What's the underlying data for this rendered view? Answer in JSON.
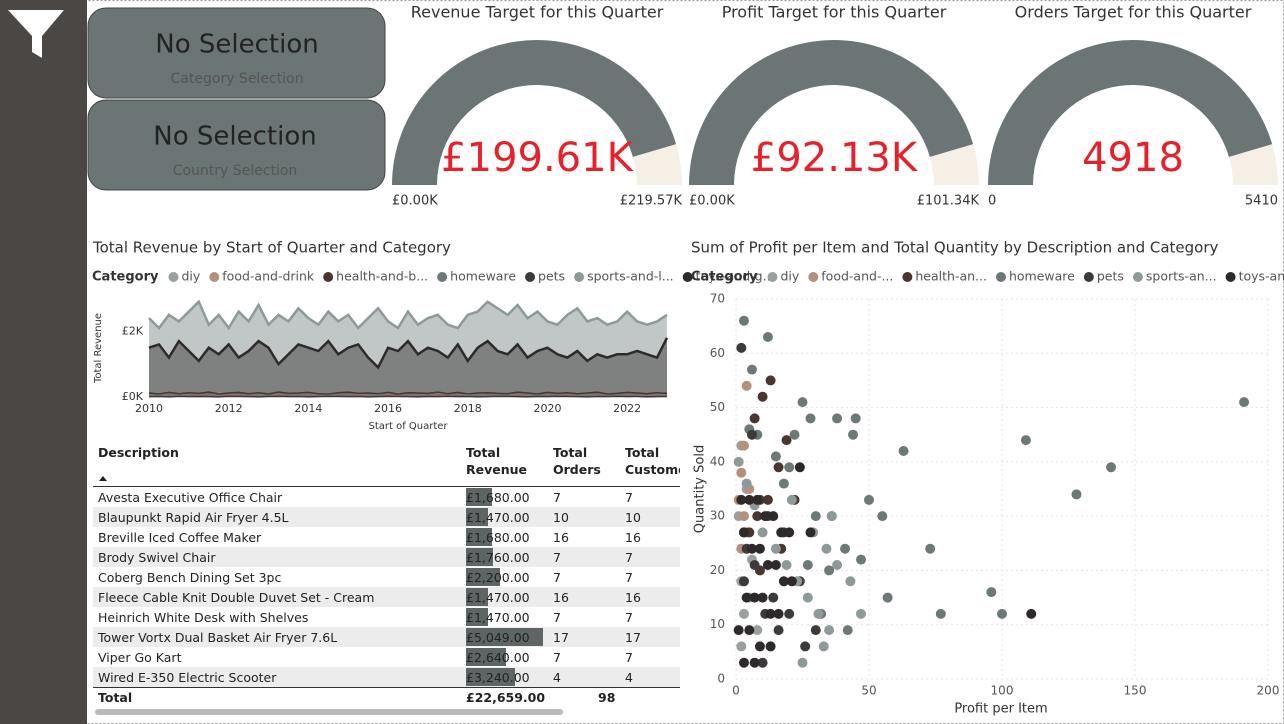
{
  "slicers": [
    {
      "value": "No Selection",
      "label": "Category Selection"
    },
    {
      "value": "No Selection",
      "label": "Country Selection"
    }
  ],
  "chart_data": [
    {
      "type": "gauge",
      "title": "Revenue Target for this Quarter",
      "value": 199610,
      "value_label": "£199.61K",
      "min": {
        "value": 0,
        "label": "£0.00K"
      },
      "max": {
        "value": 219570,
        "label": "£219.57K"
      },
      "color": "#6b7575",
      "track_color": "#f6efe6",
      "value_color": "#e8202a"
    },
    {
      "type": "gauge",
      "title": "Profit Target for this Quarter",
      "value": 92130,
      "value_label": "£92.13K",
      "min": {
        "value": 0,
        "label": "£0.00K"
      },
      "max": {
        "value": 101340,
        "label": "£101.34K"
      },
      "color": "#6b7575",
      "track_color": "#f6efe6",
      "value_color": "#e8202a"
    },
    {
      "type": "gauge",
      "title": "Orders Target for this Quarter",
      "value": 4918,
      "min": 0,
      "max": 5410,
      "color": "#6b7575",
      "track_color": "#f6efe6",
      "value_color": "#e8202a"
    },
    {
      "type": "area",
      "title": "Total Revenue by Start of Quarter and Category",
      "legend_title": "Category",
      "x_label": "Start of Quarter",
      "y_label": "Total Revenue",
      "xlim": [
        2010,
        2023
      ],
      "xticks": [
        2010,
        2012,
        2014,
        2016,
        2018,
        2020,
        2022
      ],
      "ylim": [
        0,
        2800
      ],
      "yticks": [
        {
          "value": 0,
          "label": "£0K"
        },
        {
          "value": 2000,
          "label": "£2K"
        }
      ],
      "x": [
        2010,
        2010.25,
        2010.5,
        2010.75,
        2011,
        2011.25,
        2011.5,
        2011.75,
        2012,
        2012.25,
        2012.5,
        2012.75,
        2013,
        2013.25,
        2013.5,
        2013.75,
        2014,
        2014.25,
        2014.5,
        2014.75,
        2015,
        2015.25,
        2015.5,
        2015.75,
        2016,
        2016.25,
        2016.5,
        2016.75,
        2017,
        2017.25,
        2017.5,
        2017.75,
        2018,
        2018.25,
        2018.5,
        2018.75,
        2019,
        2019.25,
        2019.5,
        2019.75,
        2020,
        2020.25,
        2020.5,
        2020.75,
        2021,
        2021.25,
        2021.5,
        2021.75,
        2022,
        2022.25,
        2022.5,
        2022.75,
        2023
      ],
      "series": [
        {
          "name": "diy",
          "color": "#9aa0a0",
          "values": [
            30,
            20,
            40,
            25,
            35,
            20,
            30,
            45,
            25,
            30,
            20,
            35,
            30,
            25,
            40,
            30,
            20,
            35,
            25,
            30,
            40,
            25,
            30,
            20,
            35,
            30,
            25,
            40,
            30,
            20,
            35,
            25,
            30,
            40,
            20,
            30,
            35,
            25,
            30,
            20,
            40,
            30,
            25,
            35,
            20,
            30,
            25,
            40,
            30,
            35,
            20,
            30,
            25
          ]
        },
        {
          "name": "food-and-drink",
          "color": "#b5917b",
          "values": [
            80,
            60,
            90,
            70,
            100,
            80,
            60,
            110,
            90,
            70,
            80,
            100,
            60,
            90,
            70,
            80,
            110,
            60,
            90,
            80,
            70,
            100,
            80,
            60,
            90,
            110,
            70,
            80,
            60,
            100,
            90,
            70,
            80,
            110,
            60,
            90,
            80,
            70,
            100,
            60,
            80,
            90,
            70,
            110,
            80,
            60,
            90,
            100,
            70,
            80,
            60,
            90,
            80
          ]
        },
        {
          "name": "health-and-b...",
          "color": "#4a3530",
          "values": [
            120,
            90,
            140,
            100,
            130,
            110,
            150,
            90,
            120,
            140,
            100,
            130,
            90,
            150,
            110,
            120,
            140,
            100,
            90,
            130,
            150,
            110,
            120,
            100,
            140,
            90,
            130,
            120,
            110,
            150,
            100,
            140,
            90,
            120,
            130,
            110,
            100,
            150,
            120,
            90,
            140,
            110,
            130,
            100,
            120,
            150,
            90,
            110,
            140,
            120,
            100,
            130,
            110
          ]
        },
        {
          "name": "homeware",
          "color": "#6d7878",
          "values": [
            50,
            40,
            60,
            45,
            55,
            35,
            65,
            50,
            40,
            55,
            45,
            60,
            50,
            35,
            55,
            65,
            40,
            50,
            45,
            60,
            55,
            40,
            50,
            65,
            45,
            35,
            55,
            60,
            50,
            40,
            45,
            55,
            65,
            40,
            50,
            60,
            45,
            35,
            55,
            50,
            60,
            40,
            45,
            55,
            65,
            50,
            40,
            60,
            45,
            55,
            50,
            40,
            60
          ]
        },
        {
          "name": "pets",
          "color": "#3d3a3a",
          "values": [
            10,
            15,
            5,
            20,
            10,
            15,
            10,
            5,
            20,
            15,
            10,
            5,
            15,
            20,
            10,
            15,
            5,
            10,
            20,
            15,
            10,
            15,
            5,
            10,
            20,
            15,
            10,
            5,
            15,
            10,
            20,
            10,
            15,
            5,
            10,
            20,
            15,
            10,
            5,
            15,
            10,
            20,
            15,
            10,
            5,
            15,
            10,
            20,
            10,
            15,
            5,
            10,
            15
          ]
        },
        {
          "name": "sports-and-l...",
          "color": "#8e9999",
          "values": [
            2400,
            2100,
            2500,
            2300,
            2600,
            2900,
            2200,
            2500,
            2100,
            2600,
            2300,
            2800,
            2200,
            2500,
            2300,
            2700,
            2400,
            2200,
            2600,
            2300,
            2500,
            2100,
            2400,
            2700,
            2300,
            2100,
            2600,
            2200,
            2400,
            2500,
            2200,
            2100,
            2500,
            2600,
            2900,
            2700,
            2500,
            2800,
            2400,
            2600,
            2300,
            2200,
            2500,
            2700,
            2300,
            2400,
            2200,
            2300,
            2600,
            2300,
            2200,
            2300,
            2500
          ]
        },
        {
          "name": "toys-and-g...",
          "color": "#2e2a2a",
          "values": [
            1500,
            1600,
            1200,
            1700,
            1400,
            1100,
            1500,
            1300,
            1600,
            1200,
            1400,
            1700,
            1500,
            1000,
            1300,
            1600,
            1500,
            1400,
            1700,
            1300,
            1500,
            1600,
            1200,
            900,
            1500,
            1400,
            1700,
            1300,
            1500,
            1400,
            1200,
            1600,
            1100,
            1500,
            1700,
            1400,
            1300,
            1600,
            1200,
            1400,
            1500,
            1300,
            1200,
            1400,
            1100,
            1300,
            1200,
            1300,
            1300,
            1400,
            1300,
            1200,
            1800
          ]
        }
      ]
    },
    {
      "type": "scatter",
      "title": "Sum of Profit per Item and Total Quantity by Description and Category",
      "legend_title": "Category",
      "x_label": "Profit per Item",
      "y_label": "Quantity Sold",
      "xlim": [
        0,
        200
      ],
      "xticks": [
        0,
        50,
        100,
        150,
        200
      ],
      "ylim": [
        0,
        70
      ],
      "yticks": [
        0,
        10,
        20,
        30,
        40,
        50,
        60,
        70
      ],
      "grid": true,
      "series": [
        {
          "name": "diy",
          "color": "#9aa0a0",
          "x": [
            2,
            4,
            1,
            3,
            6,
            2,
            5,
            3,
            8,
            2
          ],
          "values": [
            43,
            35,
            30,
            27,
            22,
            18,
            15,
            12,
            9,
            6
          ]
        },
        {
          "name": "food-and-...",
          "color": "#b5917b",
          "x": [
            4,
            3,
            2,
            5,
            1,
            3,
            4,
            2
          ],
          "values": [
            54,
            43,
            38,
            35,
            33,
            30,
            27,
            24
          ]
        },
        {
          "name": "health-an...",
          "color": "#4a3530",
          "x": [
            13,
            10,
            7,
            19,
            16,
            22,
            12,
            8,
            5,
            3,
            17,
            9
          ],
          "values": [
            55,
            52,
            48,
            44,
            39,
            33,
            33,
            30,
            27,
            27,
            24,
            20
          ]
        },
        {
          "name": "homeware",
          "color": "#6d7878",
          "x": [
            3,
            6,
            12,
            25,
            38,
            44,
            45,
            63,
            73,
            109,
            128,
            141,
            191,
            50,
            55,
            20,
            30,
            35,
            27,
            41,
            32,
            42,
            47,
            57,
            77,
            96,
            100,
            5,
            8,
            15,
            28,
            36,
            22,
            18
          ],
          "values": [
            66,
            57,
            63,
            51,
            48,
            45,
            48,
            42,
            24,
            44,
            34,
            39,
            51,
            33,
            30,
            39,
            30,
            20,
            21,
            24,
            12,
            9,
            22,
            15,
            12,
            16,
            12,
            46,
            45,
            41,
            48,
            30,
            45,
            36
          ]
        },
        {
          "name": "pets",
          "color": "#3d3a3a",
          "x": [
            2,
            6,
            9,
            12,
            18,
            4,
            7,
            3,
            14,
            11,
            20,
            16,
            26,
            30,
            24,
            10
          ],
          "values": [
            61,
            45,
            33,
            30,
            27,
            24,
            21,
            18,
            15,
            12,
            12,
            9,
            6,
            9,
            18,
            3
          ]
        },
        {
          "name": "sports-an...",
          "color": "#8e9999",
          "x": [
            1,
            4,
            7,
            10,
            15,
            19,
            23,
            27,
            31,
            35,
            29,
            34,
            38,
            43,
            47,
            25,
            33,
            36,
            21
          ],
          "values": [
            40,
            36,
            32,
            27,
            24,
            21,
            18,
            15,
            12,
            9,
            27,
            24,
            21,
            18,
            12,
            3,
            6,
            30,
            33
          ]
        },
        {
          "name": "toys-and-...",
          "color": "#2e2a2a",
          "x": [
            2,
            5,
            8,
            11,
            14,
            17,
            20,
            3,
            6,
            9,
            12,
            15,
            18,
            21,
            4,
            7,
            10,
            13,
            16,
            1,
            5,
            9,
            13,
            3,
            7,
            111,
            24,
            28
          ],
          "values": [
            33,
            33,
            33,
            30,
            30,
            27,
            27,
            27,
            24,
            24,
            21,
            21,
            18,
            18,
            15,
            15,
            15,
            12,
            12,
            9,
            9,
            6,
            6,
            3,
            3,
            12,
            39,
            27
          ]
        }
      ]
    }
  ],
  "table": {
    "headers": [
      "Description",
      "Total Revenue",
      "Total Orders",
      "Total Customers"
    ],
    "rows": [
      {
        "description": "Avesta Executive Office Chair",
        "revenue": 1680,
        "revenue_label": "£1,680.00",
        "orders": 7,
        "customers": 7
      },
      {
        "description": "Blaupunkt Rapid Air Fryer 4.5L",
        "revenue": 1470,
        "revenue_label": "£1,470.00",
        "orders": 10,
        "customers": 10
      },
      {
        "description": "Breville Iced Coffee Maker",
        "revenue": 1680,
        "revenue_label": "£1,680.00",
        "orders": 16,
        "customers": 16
      },
      {
        "description": "Brody Swivel Chair",
        "revenue": 1760,
        "revenue_label": "£1,760.00",
        "orders": 7,
        "customers": 7
      },
      {
        "description": "Coberg Bench Dining Set 3pc",
        "revenue": 2200,
        "revenue_label": "£2,200.00",
        "orders": 7,
        "customers": 7
      },
      {
        "description": "Fleece Cable Knit Double Duvet Set - Cream",
        "revenue": 1470,
        "revenue_label": "£1,470.00",
        "orders": 16,
        "customers": 16
      },
      {
        "description": "Heinrich White Desk with Shelves",
        "revenue": 1470,
        "revenue_label": "£1,470.00",
        "orders": 7,
        "customers": 7
      },
      {
        "description": "Tower Vortx Dual Basket Air Fryer 7.6L",
        "revenue": 5049,
        "revenue_label": "£5,049.00",
        "orders": 17,
        "customers": 17
      },
      {
        "description": "Viper Go Kart",
        "revenue": 2640,
        "revenue_label": "£2,640.00",
        "orders": 7,
        "customers": 7
      },
      {
        "description": "Wired E-350 Electric Scooter",
        "revenue": 3240,
        "revenue_label": "£3,240.00",
        "orders": 4,
        "customers": 4
      }
    ],
    "total": {
      "label": "Total",
      "revenue": "£22,659.00",
      "orders": 98
    }
  }
}
